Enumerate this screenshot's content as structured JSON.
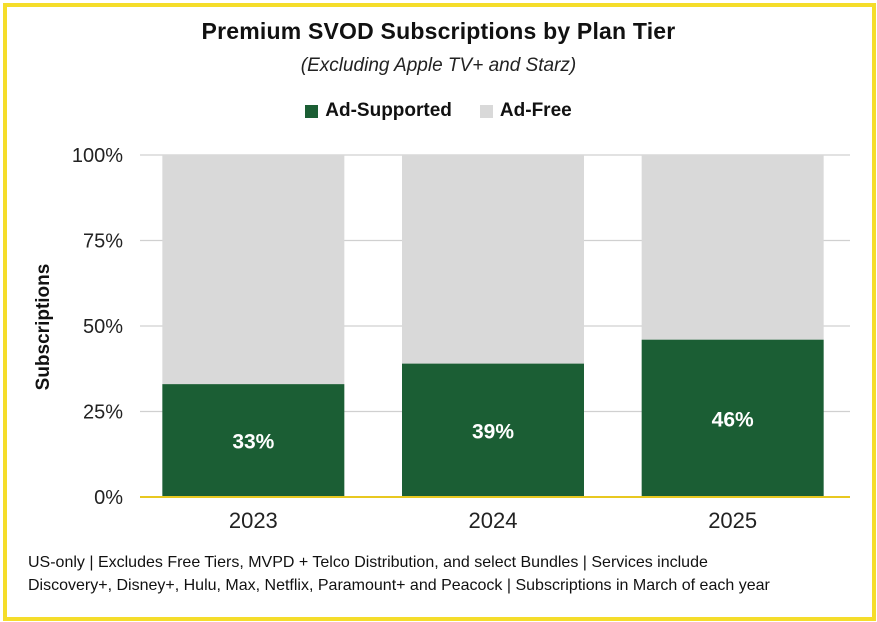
{
  "chart_data": {
    "type": "bar",
    "stacked": true,
    "title": "Premium SVOD Subscriptions by Plan Tier",
    "subtitle": "(Excluding Apple TV+ and Starz)",
    "categories": [
      "2023",
      "2024",
      "2025"
    ],
    "series": [
      {
        "name": "Ad-Supported",
        "values": [
          33,
          39,
          46
        ],
        "labels": [
          "33%",
          "39%",
          "46%"
        ]
      },
      {
        "name": "Ad-Free",
        "values": [
          67,
          61,
          54
        ]
      }
    ],
    "xlabel": "",
    "ylabel": "Subscriptions",
    "ylim": [
      0,
      100
    ],
    "yticks": [
      0,
      25,
      50,
      75,
      100
    ],
    "ytick_labels": [
      "0%",
      "25%",
      "50%",
      "75%",
      "100%"
    ],
    "grid": true,
    "legend_position": "top-center"
  },
  "colors": {
    "ad_supported": "#1b5e34",
    "ad_free": "#d9d9d9",
    "gridline": "#d0d0d0",
    "baseline": "#e8c820",
    "frame": "#f5dd2a"
  },
  "footnote": {
    "line1": "US-only | Excludes Free Tiers, MVPD + Telco Distribution, and select Bundles | Services include",
    "line2": "Discovery+, Disney+, Hulu, Max, Netflix, Paramount+ and Peacock | Subscriptions in March of each year"
  }
}
